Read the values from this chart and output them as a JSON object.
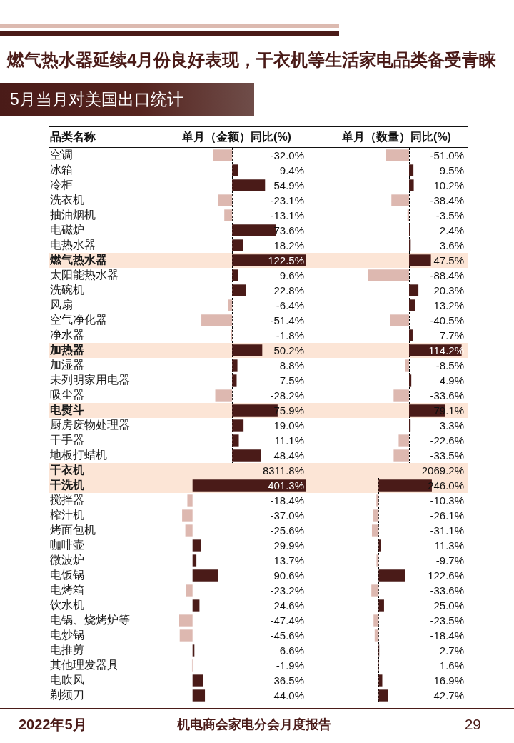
{
  "chart_data": [
    {
      "type": "bar",
      "orientation": "horizontal",
      "title": "燃气热水器延续4月份良好表现，干衣机等生活家电品类备受青睐",
      "subtitle": "5月当月对美国出口统计",
      "annotations": [
        "2022年5月",
        "机电商会家电分会月度报告",
        "29"
      ],
      "ylabel": "品类名称",
      "xlabel": "单月（金额）同比(%)",
      "categories": [
        "空调",
        "冰箱",
        "冷柜",
        "洗衣机",
        "抽油烟机",
        "电磁炉",
        "电热水器",
        "燃气热水器",
        "太阳能热水器",
        "洗碗机",
        "风扇",
        "空气净化器",
        "净水器",
        "加热器",
        "加湿器",
        "未列明家用电器",
        "吸尘器",
        "电熨斗",
        "厨房废物处理器",
        "干手器",
        "地板打蜡机"
      ],
      "values": [
        -32.0,
        9.4,
        54.9,
        -23.1,
        -13.1,
        73.6,
        18.2,
        122.5,
        9.6,
        22.8,
        -6.4,
        -51.4,
        -1.8,
        50.2,
        8.8,
        7.5,
        -28.2,
        75.9,
        19.0,
        11.1,
        48.4
      ],
      "colors": [
        "#ddb8b0",
        "#4a1b18",
        "#4a1b18",
        "#ddb8b0",
        "#ddb8b0",
        "#4a1b18",
        "#4a1b18",
        "#4a1b18",
        "#4a1b18",
        "#4a1b18",
        "#ddb8b0",
        "#ddb8b0",
        "#ddb8b0",
        "#4a1b18",
        "#4a1b18",
        "#4a1b18",
        "#ddb8b0",
        "#4a1b18",
        "#4a1b18",
        "#4a1b18",
        "#4a1b18"
      ],
      "value_labels": [
        "-32.0%",
        "9.4%",
        "54.9%",
        "-23.1%",
        "-13.1%",
        "73.6%",
        "18.2%",
        "122.5%",
        "9.6%",
        "22.8%",
        "-6.4%",
        "-51.4%",
        "-1.8%",
        "50.2%",
        "8.8%",
        "7.5%",
        "-28.2%",
        "75.9%",
        "19.0%",
        "11.1%",
        "48.4%"
      ],
      "tick_labels": "y",
      "bands": [
        {
          "axis": "y",
          "from": "燃气热水器",
          "to": "燃气热水器",
          "color": "#fce5d6"
        },
        {
          "axis": "y",
          "from": "加热器",
          "to": "加热器",
          "color": "#fce5d6"
        },
        {
          "axis": "y",
          "from": "电熨斗",
          "to": "电熨斗",
          "color": "#fce5d6"
        }
      ],
      "ref_lines": [
        {
          "axis": "x",
          "value": 0,
          "color": "#000000",
          "line_style": "dashed"
        }
      ]
    },
    {
      "type": "bar",
      "orientation": "horizontal",
      "xlabel": "单月（数量）同比(%)",
      "categories": [
        "空调",
        "冰箱",
        "冷柜",
        "洗衣机",
        "抽油烟机",
        "电磁炉",
        "电热水器",
        "燃气热水器",
        "太阳能热水器",
        "洗碗机",
        "风扇",
        "空气净化器",
        "净水器",
        "加热器",
        "加湿器",
        "未列明家用电器",
        "吸尘器",
        "电熨斗",
        "厨房废物处理器",
        "干手器",
        "地板打蜡机"
      ],
      "values": [
        -51.0,
        9.5,
        10.2,
        -38.4,
        -3.5,
        2.4,
        3.6,
        47.5,
        -88.4,
        20.3,
        13.2,
        -40.5,
        7.7,
        114.2,
        -8.5,
        4.9,
        -33.6,
        79.1,
        3.3,
        -22.6,
        -33.5
      ],
      "colors": [
        "#ddb8b0",
        "#4a1b18",
        "#4a1b18",
        "#ddb8b0",
        "#ddb8b0",
        "#4a1b18",
        "#4a1b18",
        "#4a1b18",
        "#ddb8b0",
        "#4a1b18",
        "#4a1b18",
        "#ddb8b0",
        "#4a1b18",
        "#4a1b18",
        "#ddb8b0",
        "#4a1b18",
        "#ddb8b0",
        "#4a1b18",
        "#4a1b18",
        "#ddb8b0",
        "#ddb8b0"
      ],
      "value_labels": [
        "-51.0%",
        "9.5%",
        "10.2%",
        "-38.4%",
        "-3.5%",
        "2.4%",
        "3.6%",
        "47.5%",
        "-88.4%",
        "20.3%",
        "13.2%",
        "-40.5%",
        "7.7%",
        "114.2%",
        "-8.5%",
        "4.9%",
        "-33.6%",
        "79.1%",
        "3.3%",
        "-22.6%",
        "-33.5%"
      ],
      "tick_labels": false,
      "bands": [
        {
          "axis": "y",
          "from": "燃气热水器",
          "to": "燃气热水器",
          "color": "#fce5d6"
        },
        {
          "axis": "y",
          "from": "加热器",
          "to": "加热器",
          "color": "#fce5d6"
        },
        {
          "axis": "y",
          "from": "电熨斗",
          "to": "电熨斗",
          "color": "#fce5d6"
        }
      ],
      "ref_lines": [
        {
          "axis": "x",
          "value": 0,
          "color": "#000000",
          "line_style": "dashed"
        }
      ]
    },
    {
      "type": "bar",
      "orientation": "horizontal",
      "categories": [
        "干衣机",
        "干洗机",
        "搅拌器",
        "榨汁机",
        "烤面包机",
        "咖啡壶",
        "微波炉",
        "电饭锅",
        "电烤箱",
        "饮水机",
        "电锅、烧烤炉等",
        "电炒锅",
        "电推剪",
        "其他理发器具",
        "电吹风",
        "剃须刀"
      ],
      "values": [
        null,
        401.3,
        -18.4,
        -37.0,
        -25.6,
        29.9,
        13.7,
        90.6,
        -23.2,
        24.6,
        -47.4,
        -45.6,
        6.6,
        -1.9,
        36.5,
        44.0
      ],
      "colors": [
        null,
        "#4a1b18",
        "#ddb8b0",
        "#ddb8b0",
        "#ddb8b0",
        "#4a1b18",
        "#4a1b18",
        "#4a1b18",
        "#ddb8b0",
        "#4a1b18",
        "#ddb8b0",
        "#ddb8b0",
        "#4a1b18",
        "#ddb8b0",
        "#4a1b18",
        "#4a1b18"
      ],
      "value_labels": [
        "8311.8%",
        "401.3%",
        "-18.4%",
        "-37.0%",
        "-25.6%",
        "29.9%",
        "13.7%",
        "90.6%",
        "-23.2%",
        "24.6%",
        "-47.4%",
        "-45.6%",
        "6.6%",
        "-1.9%",
        "36.5%",
        "44.0%"
      ],
      "tick_labels": "y",
      "bands": [
        {
          "axis": "y",
          "from": "干衣机",
          "to": "干洗机",
          "color": "#fce5d6"
        }
      ],
      "ref_lines": [
        {
          "axis": "x",
          "value": 0,
          "color": "#000000",
          "line_style": "dashed"
        }
      ]
    },
    {
      "type": "bar",
      "orientation": "horizontal",
      "categories": [
        "干衣机",
        "干洗机",
        "搅拌器",
        "榨汁机",
        "烤面包机",
        "咖啡壶",
        "微波炉",
        "电饭锅",
        "电烤箱",
        "饮水机",
        "电锅、烧烤炉等",
        "电炒锅",
        "电推剪",
        "其他理发器具",
        "电吹风",
        "剃须刀"
      ],
      "values": [
        null,
        246.0,
        -10.3,
        -26.1,
        -31.1,
        11.3,
        -9.7,
        122.6,
        -33.6,
        25.0,
        -23.5,
        -18.4,
        2.7,
        1.6,
        16.9,
        42.7
      ],
      "colors": [
        null,
        "#4a1b18",
        "#ddb8b0",
        "#ddb8b0",
        "#ddb8b0",
        "#4a1b18",
        "#ddb8b0",
        "#4a1b18",
        "#ddb8b0",
        "#4a1b18",
        "#ddb8b0",
        "#ddb8b0",
        "#4a1b18",
        "#4a1b18",
        "#4a1b18",
        "#4a1b18"
      ],
      "value_labels": [
        "2069.2%",
        "246.0%",
        "-10.3%",
        "-26.1%",
        "-31.1%",
        "11.3%",
        "-9.7%",
        "122.6%",
        "-33.6%",
        "25.0%",
        "-23.5%",
        "-18.4%",
        "2.7%",
        "1.6%",
        "16.9%",
        "42.7%"
      ],
      "tick_labels": false,
      "bands": [
        {
          "axis": "y",
          "from": "干衣机",
          "to": "干洗机",
          "color": "#fce5d6"
        }
      ],
      "ref_lines": [
        {
          "axis": "x",
          "value": 0,
          "color": "#000000",
          "line_style": "dashed"
        }
      ]
    }
  ]
}
